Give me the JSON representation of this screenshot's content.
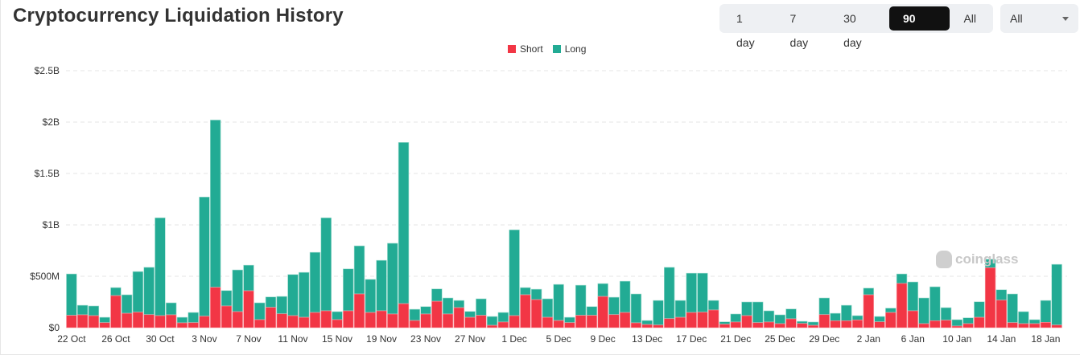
{
  "header": {
    "title": "Cryptocurrency Liquidation History"
  },
  "range_buttons": [
    {
      "label": "1 day",
      "active": false
    },
    {
      "label": "7 day",
      "active": false
    },
    {
      "label": "30 day",
      "active": false
    },
    {
      "label": "90 day",
      "active": true
    },
    {
      "label": "All",
      "active": false
    }
  ],
  "filter_select": {
    "value": "All"
  },
  "watermark": "coinglass",
  "colors": {
    "short": "#f23645",
    "long": "#22ab94"
  },
  "chart_data": {
    "type": "bar",
    "stacked": true,
    "title": "Cryptocurrency Liquidation History",
    "xlabel": "",
    "ylabel": "",
    "unit": "USD millions",
    "ylim": [
      0,
      2500
    ],
    "yticks": [
      0,
      500,
      1000,
      1500,
      2000,
      2500
    ],
    "ytick_labels": [
      "$0",
      "$500M",
      "$1B",
      "$1.5B",
      "$2B",
      "$2.5B"
    ],
    "grid": true,
    "legend_position": "top-center",
    "categories": [
      "22 Oct",
      "23 Oct",
      "24 Oct",
      "25 Oct",
      "26 Oct",
      "27 Oct",
      "28 Oct",
      "29 Oct",
      "30 Oct",
      "31 Oct",
      "1 Nov",
      "2 Nov",
      "3 Nov",
      "4 Nov",
      "5 Nov",
      "6 Nov",
      "7 Nov",
      "8 Nov",
      "9 Nov",
      "10 Nov",
      "11 Nov",
      "12 Nov",
      "13 Nov",
      "14 Nov",
      "15 Nov",
      "16 Nov",
      "17 Nov",
      "18 Nov",
      "19 Nov",
      "20 Nov",
      "21 Nov",
      "22 Nov",
      "23 Nov",
      "24 Nov",
      "25 Nov",
      "26 Nov",
      "27 Nov",
      "28 Nov",
      "29 Nov",
      "30 Nov",
      "1 Dec",
      "2 Dec",
      "3 Dec",
      "4 Dec",
      "5 Dec",
      "6 Dec",
      "7 Dec",
      "8 Dec",
      "9 Dec",
      "10 Dec",
      "11 Dec",
      "12 Dec",
      "13 Dec",
      "14 Dec",
      "15 Dec",
      "16 Dec",
      "17 Dec",
      "18 Dec",
      "19 Dec",
      "20 Dec",
      "21 Dec",
      "22 Dec",
      "23 Dec",
      "24 Dec",
      "25 Dec",
      "26 Dec",
      "27 Dec",
      "28 Dec",
      "29 Dec",
      "30 Dec",
      "31 Dec",
      "1 Jan",
      "2 Jan",
      "3 Jan",
      "4 Jan",
      "5 Jan",
      "6 Jan",
      "7 Jan",
      "8 Jan",
      "9 Jan",
      "10 Jan",
      "11 Jan",
      "12 Jan",
      "13 Jan",
      "14 Jan",
      "15 Jan",
      "16 Jan",
      "17 Jan",
      "18 Jan",
      "19 Jan"
    ],
    "tick_every": 4,
    "series": [
      {
        "name": "Short",
        "values": [
          120,
          125,
          117,
          49,
          312,
          140,
          151,
          127,
          117,
          125,
          47,
          49,
          112,
          393,
          211,
          156,
          359,
          78,
          198,
          135,
          117,
          101,
          148,
          164,
          78,
          164,
          328,
          148,
          164,
          133,
          234,
          70,
          133,
          257,
          133,
          195,
          101,
          120,
          23,
          55,
          117,
          320,
          273,
          101,
          70,
          49,
          120,
          120,
          304,
          127,
          148,
          47,
          31,
          26,
          88,
          101,
          148,
          151,
          172,
          34,
          55,
          117,
          49,
          55,
          39,
          86,
          41,
          23,
          127,
          68,
          68,
          75,
          320,
          57,
          148,
          431,
          164,
          39,
          68,
          73,
          16,
          39,
          101,
          583,
          268,
          49,
          39,
          39,
          52,
          26
        ]
      },
      {
        "name": "Long",
        "values": [
          403,
          93,
          94,
          52,
          78,
          180,
          395,
          460,
          952,
          117,
          54,
          99,
          1159,
          1627,
          150,
          406,
          249,
          164,
          101,
          169,
          400,
          437,
          585,
          905,
          78,
          408,
          468,
          322,
          491,
          688,
          1568,
          109,
          72,
          120,
          156,
          70,
          57,
          161,
          86,
          93,
          835,
          70,
          101,
          180,
          351,
          52,
          293,
          85,
          125,
          169,
          304,
          281,
          39,
          239,
          499,
          164,
          382,
          379,
          93,
          23,
          78,
          133,
          201,
          109,
          86,
          96,
          21,
          32,
          162,
          72,
          150,
          42,
          65,
          52,
          42,
          92,
          281,
          250,
          330,
          122,
          62,
          57,
          151,
          83,
          101,
          279,
          117,
          39,
          213,
          590
        ]
      }
    ]
  }
}
